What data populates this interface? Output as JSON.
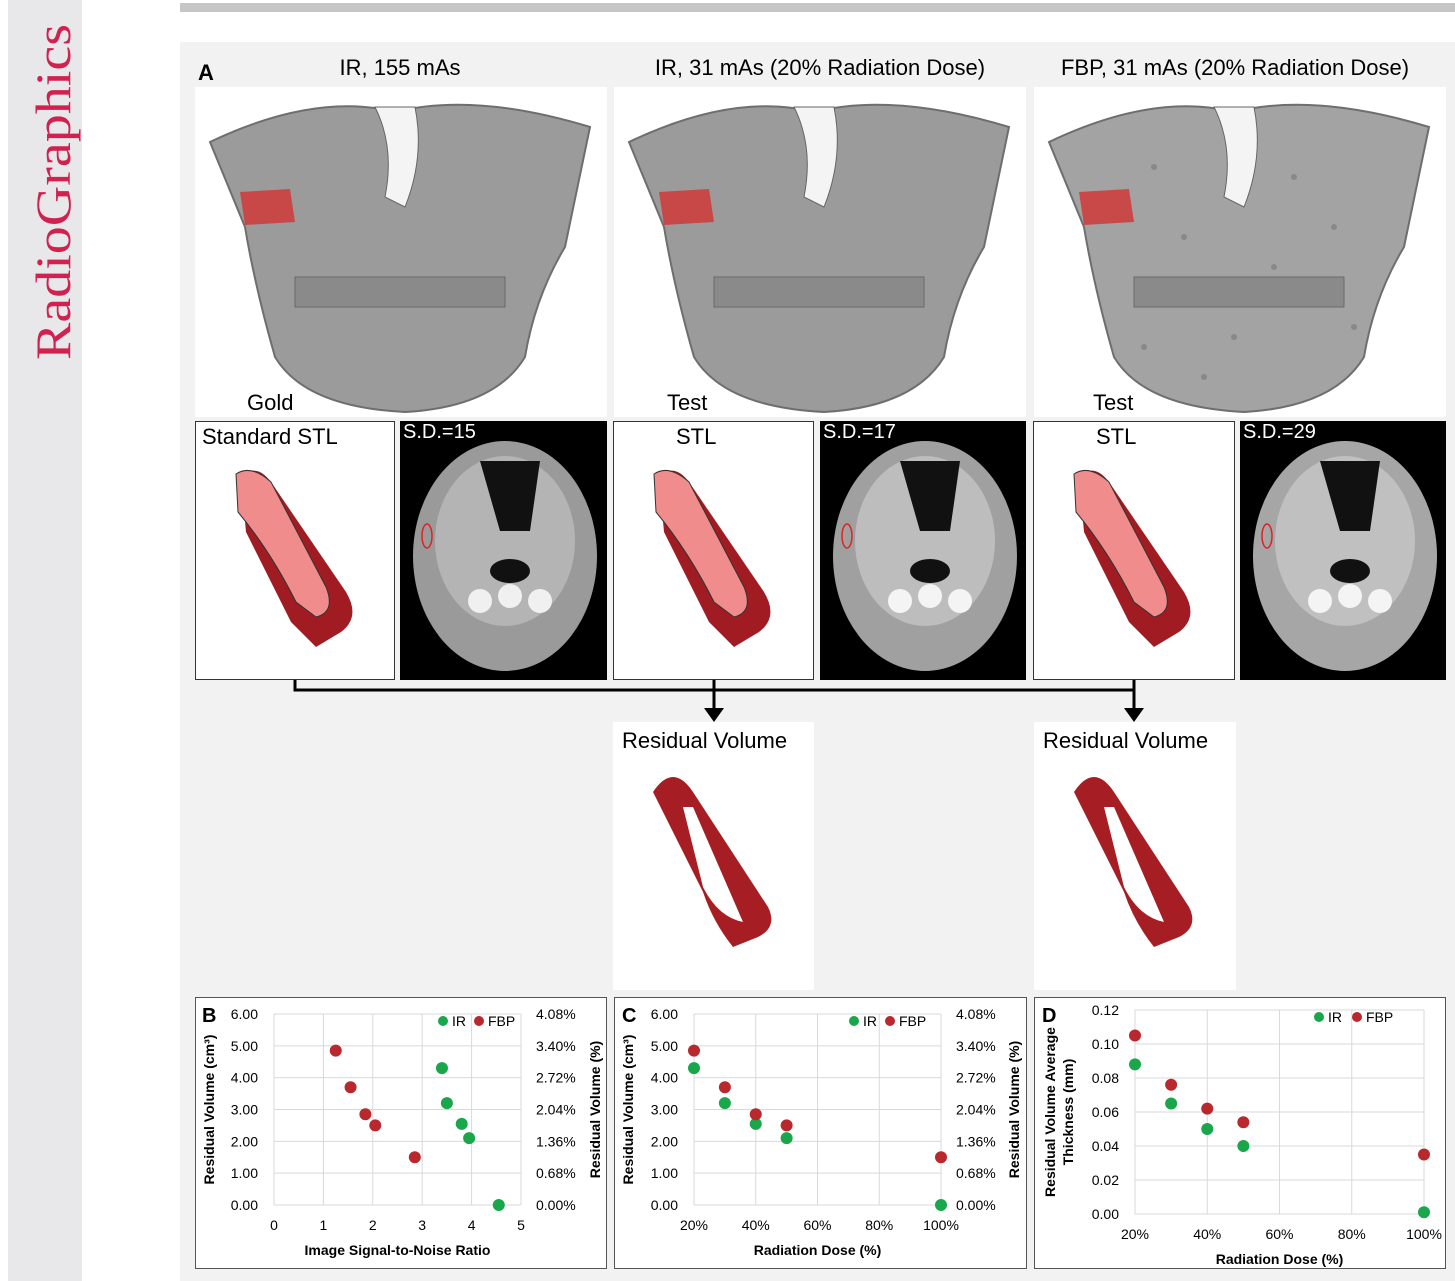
{
  "brand": {
    "name": "RadioGraphics",
    "color": "#d0214f"
  },
  "panelA": {
    "letter": "A",
    "columns": [
      {
        "title": "IR, 155 mAs",
        "tag": "Gold",
        "stl_label": "Standard STL",
        "sd": "S.D.=15"
      },
      {
        "title": "IR, 31 mAs (20% Radiation Dose)",
        "tag": "Test",
        "stl_label": "STL",
        "sd": "S.D.=17"
      },
      {
        "title": "FBP, 31 mAs (20% Radiation Dose)",
        "tag": "Test",
        "stl_label": "STL",
        "sd": "S.D.=29"
      }
    ],
    "residual": [
      "Residual Volume",
      "Residual Volume"
    ]
  },
  "colors": {
    "ir": "#1aa64a",
    "fbp": "#b8282d",
    "bone": "#9b9b9b",
    "stl_light": "#f08c8c",
    "stl_dark": "#a01c22"
  },
  "chart_data": [
    {
      "panel": "B",
      "type": "scatter",
      "xlabel": "Image Signal-to-Noise Ratio",
      "ylabel": "Residual Volume (cm³)",
      "y2label": "Residual Volume (%)",
      "xlim": [
        0,
        5
      ],
      "ylim": [
        0,
        6
      ],
      "xticks": [
        "0",
        "1",
        "2",
        "3",
        "4",
        "5"
      ],
      "yticks": [
        "0.00",
        "1.00",
        "2.00",
        "3.00",
        "4.00",
        "5.00",
        "6.00"
      ],
      "y2ticks": [
        "0.00%",
        "0.68%",
        "1.36%",
        "2.04%",
        "2.72%",
        "3.40%",
        "4.08%"
      ],
      "legend": [
        "IR",
        "FBP"
      ],
      "series": [
        {
          "name": "IR",
          "points": [
            [
              3.4,
              4.3
            ],
            [
              3.5,
              3.2
            ],
            [
              3.8,
              2.55
            ],
            [
              3.95,
              2.1
            ],
            [
              4.55,
              0.0
            ]
          ]
        },
        {
          "name": "FBP",
          "points": [
            [
              1.25,
              4.85
            ],
            [
              1.55,
              3.7
            ],
            [
              1.85,
              2.85
            ],
            [
              2.05,
              2.5
            ],
            [
              2.85,
              1.5
            ]
          ]
        }
      ]
    },
    {
      "panel": "C",
      "type": "scatter",
      "xlabel": "Radiation Dose (%)",
      "ylabel": "Residual Volume (cm³)",
      "y2label": "Residual Volume (%)",
      "xlim": [
        20,
        100
      ],
      "ylim": [
        0,
        6
      ],
      "xticks": [
        "20%",
        "40%",
        "60%",
        "80%",
        "100%"
      ],
      "yticks": [
        "0.00",
        "1.00",
        "2.00",
        "3.00",
        "4.00",
        "5.00",
        "6.00"
      ],
      "y2ticks": [
        "0.00%",
        "0.68%",
        "1.36%",
        "2.04%",
        "2.72%",
        "3.40%",
        "4.08%"
      ],
      "legend": [
        "IR",
        "FBP"
      ],
      "series": [
        {
          "name": "IR",
          "points": [
            [
              20,
              4.3
            ],
            [
              30,
              3.2
            ],
            [
              40,
              2.55
            ],
            [
              50,
              2.1
            ],
            [
              100,
              0.0
            ]
          ]
        },
        {
          "name": "FBP",
          "points": [
            [
              20,
              4.85
            ],
            [
              30,
              3.7
            ],
            [
              40,
              2.85
            ],
            [
              50,
              2.5
            ],
            [
              100,
              1.5
            ]
          ]
        }
      ]
    },
    {
      "panel": "D",
      "type": "scatter",
      "xlabel": "Radiation Dose (%)",
      "ylabel": [
        "Residual Volume Average",
        "Thickness (mm)"
      ],
      "xlim": [
        20,
        100
      ],
      "ylim": [
        0,
        0.12
      ],
      "xticks": [
        "20%",
        "40%",
        "60%",
        "80%",
        "100%"
      ],
      "yticks": [
        "0.00",
        "0.02",
        "0.04",
        "0.06",
        "0.08",
        "0.10",
        "0.12"
      ],
      "legend": [
        "IR",
        "FBP"
      ],
      "series": [
        {
          "name": "IR",
          "points": [
            [
              20,
              0.088
            ],
            [
              30,
              0.065
            ],
            [
              40,
              0.05
            ],
            [
              50,
              0.04
            ],
            [
              100,
              0.001
            ]
          ]
        },
        {
          "name": "FBP",
          "points": [
            [
              20,
              0.105
            ],
            [
              30,
              0.076
            ],
            [
              40,
              0.062
            ],
            [
              50,
              0.054
            ],
            [
              100,
              0.035
            ]
          ]
        }
      ]
    }
  ]
}
